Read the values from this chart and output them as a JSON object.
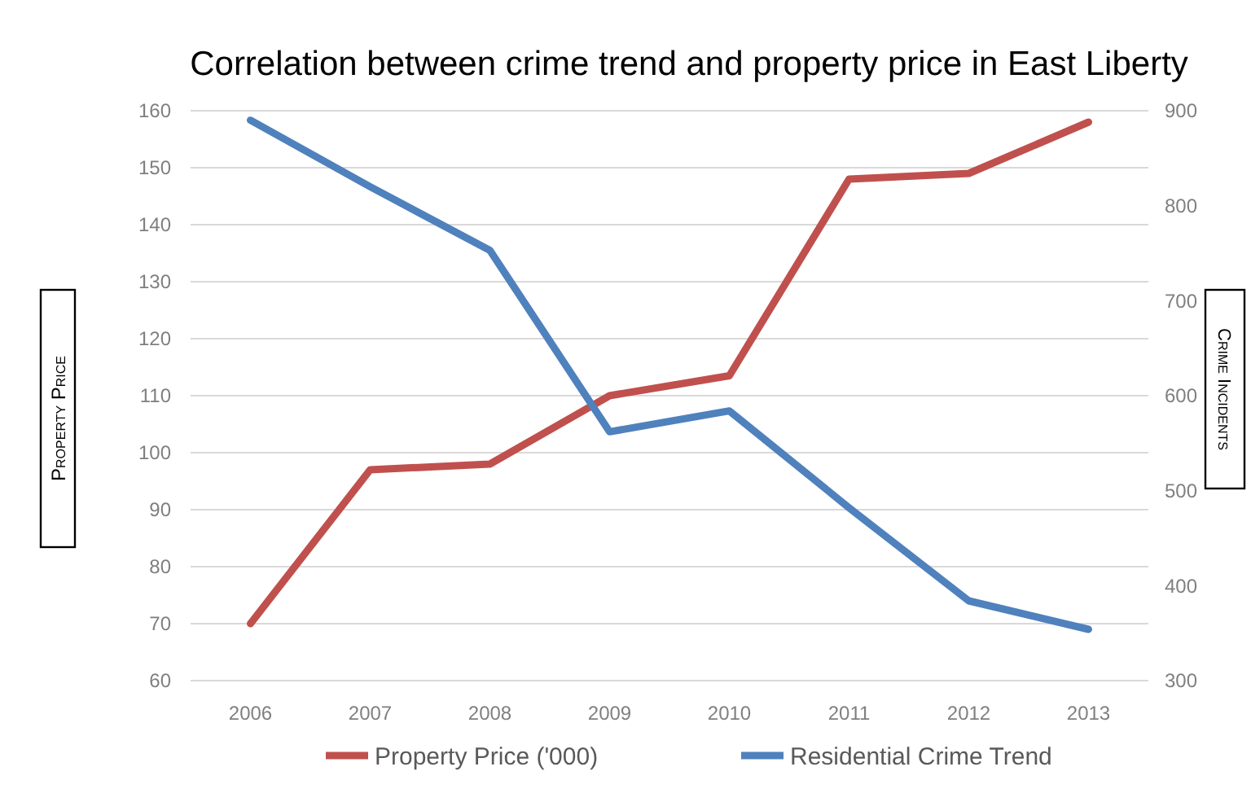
{
  "chart_data": {
    "type": "line",
    "title": "Correlation between crime trend and property price in East Liberty",
    "categories": [
      "2006",
      "2007",
      "2008",
      "2009",
      "2010",
      "2011",
      "2012",
      "2013"
    ],
    "ylabel": "Property Price",
    "y2label": "Crime Incidents",
    "ylim": [
      60,
      160
    ],
    "yticks": [
      60,
      70,
      80,
      90,
      100,
      110,
      120,
      130,
      140,
      150,
      160
    ],
    "y2lim": [
      300,
      900
    ],
    "y2ticks": [
      300,
      400,
      500,
      600,
      700,
      800,
      900
    ],
    "grid": "y",
    "legend": "bottom",
    "marker": "none",
    "line_style": "solid",
    "series": [
      {
        "name": "Property Price ('000)",
        "color": "#c0504d",
        "values": [
          70,
          97,
          98,
          110,
          113.5,
          148,
          149,
          158
        ]
      },
      {
        "name": "Residential Crime Trend",
        "color": "#4f81bd",
        "axis": "y2",
        "values": [
          890,
          820,
          753,
          562,
          584,
          482,
          384,
          354
        ]
      }
    ]
  }
}
